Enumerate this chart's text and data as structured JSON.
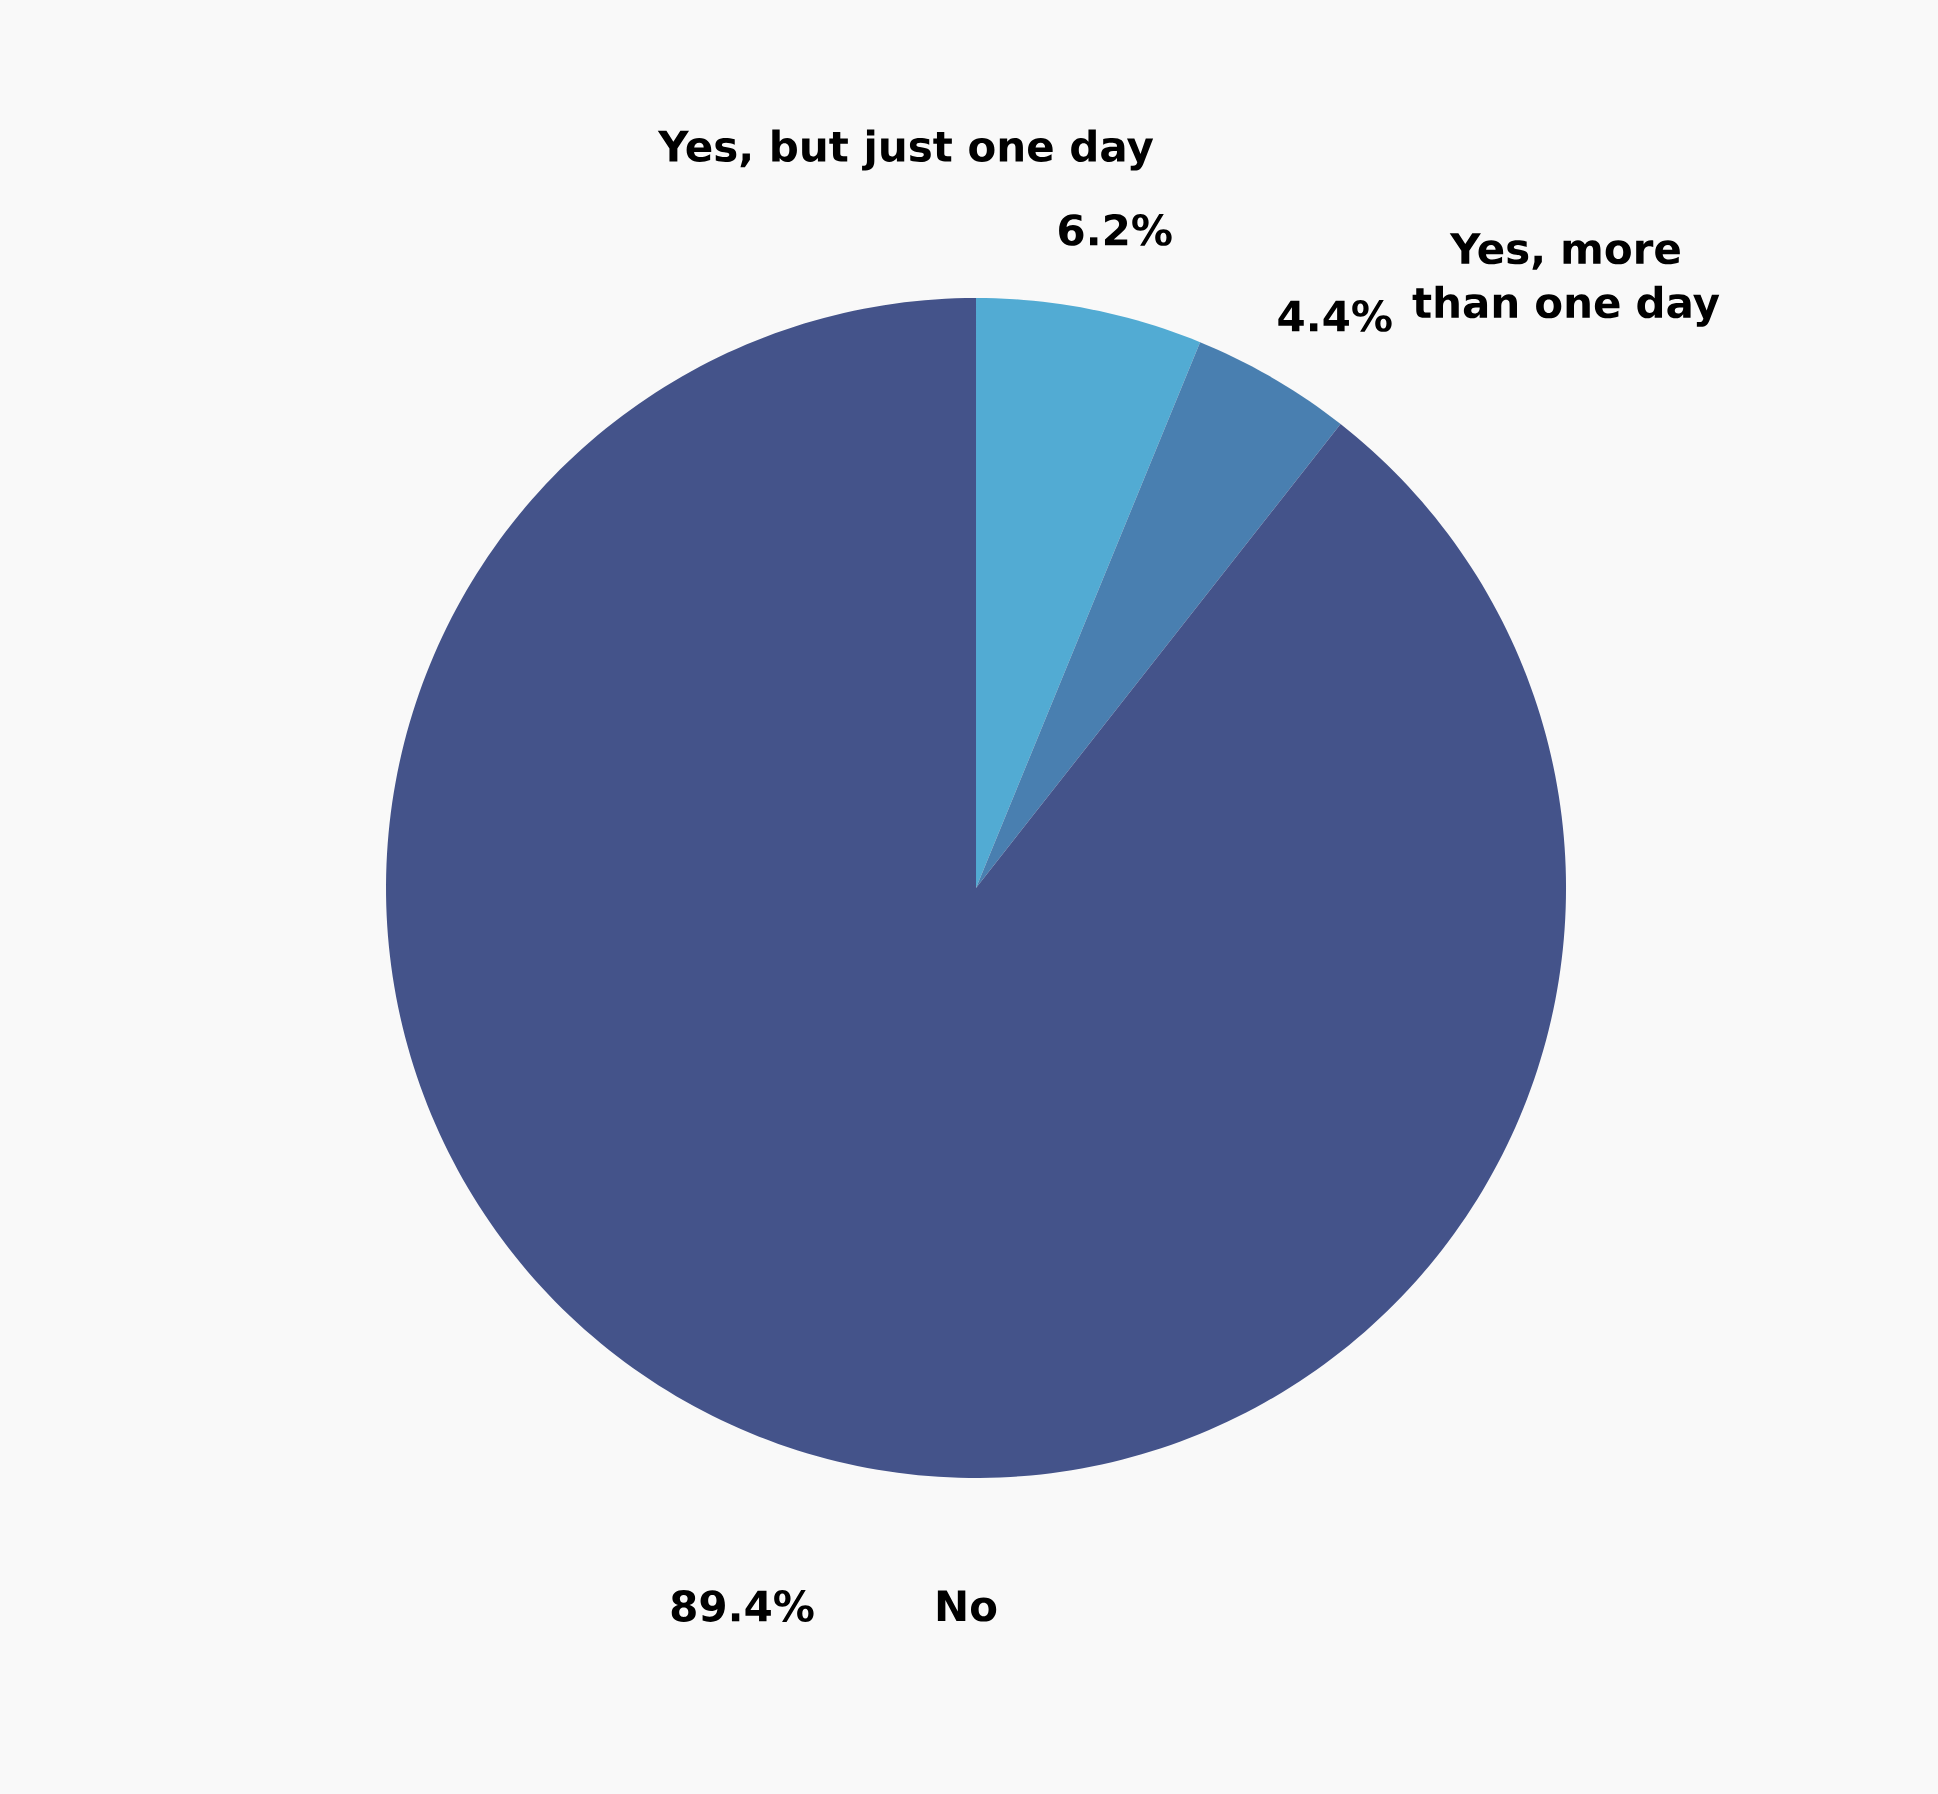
{
  "chart_data": {
    "type": "pie",
    "categories": [
      "Yes, but just one day",
      "Yes, more than one day",
      "No"
    ],
    "values": [
      6.2,
      4.4,
      89.4
    ],
    "value_labels": [
      "6.2%",
      "4.4%",
      "89.4%"
    ],
    "colors": [
      "#52abd3",
      "#497fb0",
      "#44538a"
    ]
  }
}
